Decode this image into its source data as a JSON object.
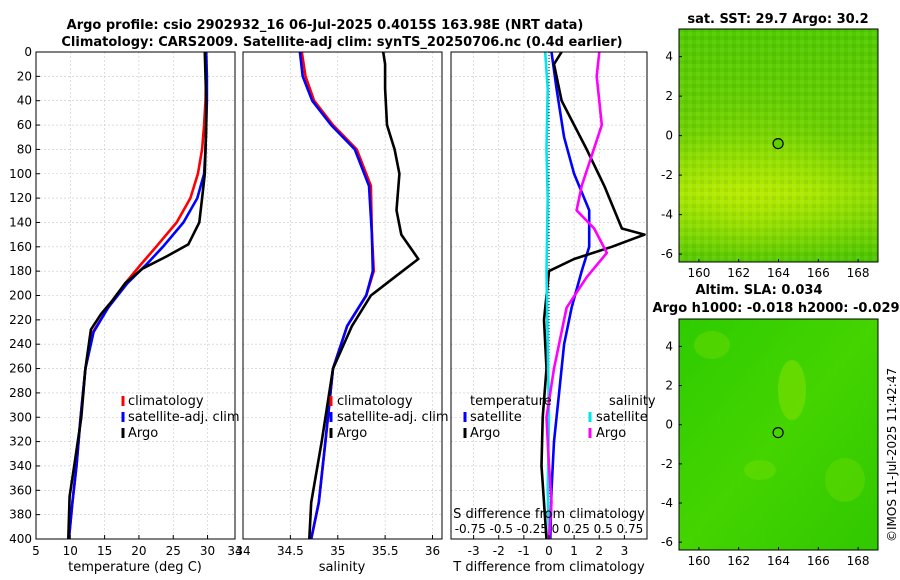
{
  "figure": {
    "title_line1": "Argo profile: csio 2902932_16 06-Jul-2025 0.4015S 163.98E (NRT data)",
    "title_line2": "Climatology: CARS2009. Satellite-adj clim: synTS_20250706.nc (0.4d earlier)",
    "credit": "©IMOS 11-Jul-2025 11:42:47"
  },
  "colors": {
    "climatology": "#ff0000",
    "satellite": "#0000ff",
    "argo": "#000000",
    "sat_sal": "#00e5ee",
    "argo_sal": "#ff00ff",
    "zero_line": "#000000"
  },
  "chart_data": [
    {
      "id": "temperature",
      "type": "line",
      "xlabel": "temperature (deg C)",
      "xlim": [
        5,
        34
      ],
      "xticks": [
        "5",
        "10",
        "15",
        "20",
        "25",
        "30",
        "34"
      ],
      "ylim": [
        0,
        400
      ],
      "yticks": [
        "0",
        "20",
        "40",
        "60",
        "80",
        "100",
        "120",
        "140",
        "160",
        "180",
        "200",
        "220",
        "240",
        "260",
        "280",
        "300",
        "320",
        "340",
        "360",
        "380",
        "400"
      ],
      "legend": [
        "climatology",
        "satellite-adj. clim",
        "Argo"
      ],
      "series": [
        {
          "name": "climatology",
          "points": [
            [
              29.8,
              0
            ],
            [
              29.8,
              20
            ],
            [
              29.7,
              40
            ],
            [
              29.5,
              60
            ],
            [
              29.2,
              80
            ],
            [
              28.6,
              100
            ],
            [
              27.5,
              120
            ],
            [
              25.5,
              140
            ],
            [
              22.5,
              160
            ],
            [
              20.2,
              175
            ],
            [
              18,
              190
            ],
            [
              15.5,
              210
            ],
            [
              13.3,
              230
            ],
            [
              12.2,
              260
            ],
            [
              11.5,
              300
            ],
            [
              10.9,
              340
            ],
            [
              10.3,
              370
            ],
            [
              9.8,
              400
            ]
          ]
        },
        {
          "name": "satellite-adj. clim",
          "points": [
            [
              29.8,
              0
            ],
            [
              29.9,
              20
            ],
            [
              29.9,
              40
            ],
            [
              29.8,
              60
            ],
            [
              29.7,
              80
            ],
            [
              29.5,
              100
            ],
            [
              28.5,
              120
            ],
            [
              26.5,
              140
            ],
            [
              23.5,
              160
            ],
            [
              21,
              175
            ],
            [
              18.3,
              190
            ],
            [
              15.5,
              210
            ],
            [
              13.4,
              230
            ],
            [
              12.2,
              260
            ],
            [
              11.5,
              300
            ],
            [
              10.9,
              340
            ],
            [
              10.3,
              370
            ],
            [
              9.8,
              400
            ]
          ]
        },
        {
          "name": "Argo",
          "points": [
            [
              29.6,
              0
            ],
            [
              29.7,
              20
            ],
            [
              29.8,
              40
            ],
            [
              29.8,
              60
            ],
            [
              29.7,
              80
            ],
            [
              29.6,
              100
            ],
            [
              29.2,
              120
            ],
            [
              28.8,
              140
            ],
            [
              27.2,
              158
            ],
            [
              24,
              168
            ],
            [
              20.5,
              178
            ],
            [
              18,
              190
            ],
            [
              16,
              205
            ],
            [
              14.5,
              215
            ],
            [
              13,
              228
            ],
            [
              12.2,
              260
            ],
            [
              11.6,
              300
            ],
            [
              10.7,
              335
            ],
            [
              9.9,
              365
            ],
            [
              9.7,
              400
            ]
          ]
        }
      ]
    },
    {
      "id": "salinity",
      "type": "line",
      "xlabel": "salinity",
      "xlim": [
        34,
        36.1
      ],
      "xticks": [
        "34",
        "34.5",
        "35",
        "35.5",
        "36"
      ],
      "ylim": [
        0,
        400
      ],
      "legend": [
        "climatology",
        "satellite-adj. clim",
        "Argo"
      ],
      "series": [
        {
          "name": "climatology",
          "points": [
            [
              34.62,
              0
            ],
            [
              34.66,
              20
            ],
            [
              34.75,
              40
            ],
            [
              34.95,
              60
            ],
            [
              35.2,
              80
            ],
            [
              35.35,
              110
            ],
            [
              35.36,
              150
            ],
            [
              35.38,
              180
            ],
            [
              35.3,
              200
            ],
            [
              35.1,
              225
            ],
            [
              34.95,
              260
            ],
            [
              34.87,
              320
            ],
            [
              34.8,
              370
            ],
            [
              34.72,
              400
            ]
          ]
        },
        {
          "name": "satellite-adj. clim",
          "points": [
            [
              34.6,
              0
            ],
            [
              34.63,
              20
            ],
            [
              34.73,
              40
            ],
            [
              34.93,
              60
            ],
            [
              35.18,
              80
            ],
            [
              35.33,
              110
            ],
            [
              35.36,
              150
            ],
            [
              35.37,
              180
            ],
            [
              35.3,
              200
            ],
            [
              35.1,
              225
            ],
            [
              34.95,
              260
            ],
            [
              34.87,
              320
            ],
            [
              34.8,
              370
            ],
            [
              34.72,
              400
            ]
          ]
        },
        {
          "name": "Argo",
          "points": [
            [
              35.48,
              0
            ],
            [
              35.5,
              10
            ],
            [
              35.5,
              30
            ],
            [
              35.52,
              60
            ],
            [
              35.6,
              80
            ],
            [
              35.65,
              100
            ],
            [
              35.62,
              130
            ],
            [
              35.67,
              150
            ],
            [
              35.85,
              170
            ],
            [
              35.6,
              185
            ],
            [
              35.35,
              200
            ],
            [
              35.15,
              225
            ],
            [
              34.95,
              260
            ],
            [
              34.83,
              320
            ],
            [
              34.72,
              370
            ],
            [
              34.7,
              400
            ]
          ]
        }
      ]
    },
    {
      "id": "difference",
      "type": "line",
      "xlabel": "T difference from climatology",
      "xlabel2": "S difference from climatology",
      "xlabel2_ticks": "-0.75 -0.5 -0.25 0 0.25 0.5 0.75",
      "xlim": [
        -3.9,
        3.9
      ],
      "xticks": [
        "-3",
        "-2",
        "-1",
        "0",
        "1",
        "2",
        "3"
      ],
      "ylim": [
        0,
        400
      ],
      "legend_titles": [
        "temperature",
        "salinity"
      ],
      "legend": [
        "satellite",
        "Argo",
        "satellite",
        "Argo"
      ],
      "series": [
        {
          "name": "temperature satellite",
          "points": [
            [
              0.1,
              0
            ],
            [
              0.3,
              30
            ],
            [
              0.6,
              70
            ],
            [
              1.0,
              100
            ],
            [
              1.6,
              130
            ],
            [
              1.6,
              160
            ],
            [
              1.3,
              180
            ],
            [
              0.9,
              210
            ],
            [
              0.6,
              240
            ],
            [
              0.4,
              280
            ],
            [
              0.2,
              320
            ],
            [
              0.1,
              360
            ],
            [
              0.05,
              400
            ]
          ]
        },
        {
          "name": "temperature Argo",
          "points": [
            [
              0.5,
              0
            ],
            [
              0.2,
              10
            ],
            [
              0.5,
              40
            ],
            [
              1.5,
              80
            ],
            [
              2.2,
              110
            ],
            [
              2.9,
              145
            ],
            [
              3.8,
              150
            ],
            [
              2.5,
              160
            ],
            [
              1.0,
              170
            ],
            [
              0.0,
              180
            ],
            [
              -0.2,
              220
            ],
            [
              -0.1,
              260
            ],
            [
              -0.25,
              300
            ],
            [
              -0.3,
              340
            ],
            [
              -0.2,
              370
            ],
            [
              -0.1,
              400
            ]
          ]
        },
        {
          "name": "salinity satellite",
          "points": [
            [
              -0.15,
              0
            ],
            [
              -0.05,
              30
            ],
            [
              -0.1,
              80
            ],
            [
              -0.05,
              120
            ],
            [
              -0.1,
              180
            ],
            [
              -0.05,
              240
            ],
            [
              0.0,
              300
            ],
            [
              -0.05,
              360
            ],
            [
              0.0,
              400
            ]
          ]
        },
        {
          "name": "salinity Argo",
          "points": [
            [
              2.0,
              0
            ],
            [
              1.9,
              20
            ],
            [
              2.1,
              60
            ],
            [
              1.3,
              110
            ],
            [
              1.1,
              130
            ],
            [
              1.8,
              145
            ],
            [
              2.3,
              165
            ],
            [
              1.5,
              185
            ],
            [
              0.7,
              210
            ],
            [
              0.2,
              260
            ],
            [
              -0.1,
              300
            ],
            [
              0.0,
              340
            ],
            [
              0.1,
              370
            ],
            [
              0.0,
              400
            ]
          ]
        }
      ]
    },
    {
      "id": "sat-sst-map",
      "type": "heatmap",
      "title": "sat. SST: 29.7  Argo: 30.2",
      "xlim": [
        159,
        169
      ],
      "ylim": [
        -6.4,
        5.4
      ],
      "xticks": [
        "160",
        "162",
        "164",
        "166",
        "168"
      ],
      "yticks": [
        "-6",
        "-4",
        "-2",
        "0",
        "2",
        "4"
      ],
      "argo_position": [
        163.98,
        -0.4015
      ]
    },
    {
      "id": "sla-map",
      "type": "heatmap",
      "title": "Altim. SLA: 0.034",
      "subtitle": "Argo h1000: -0.018  h2000: -0.029",
      "xlim": [
        159,
        169
      ],
      "ylim": [
        -6.4,
        5.4
      ],
      "xticks": [
        "160",
        "162",
        "164",
        "166",
        "168"
      ],
      "yticks": [
        "-6",
        "-4",
        "-2",
        "0",
        "2",
        "4"
      ],
      "argo_position": [
        163.98,
        -0.4015
      ]
    }
  ]
}
